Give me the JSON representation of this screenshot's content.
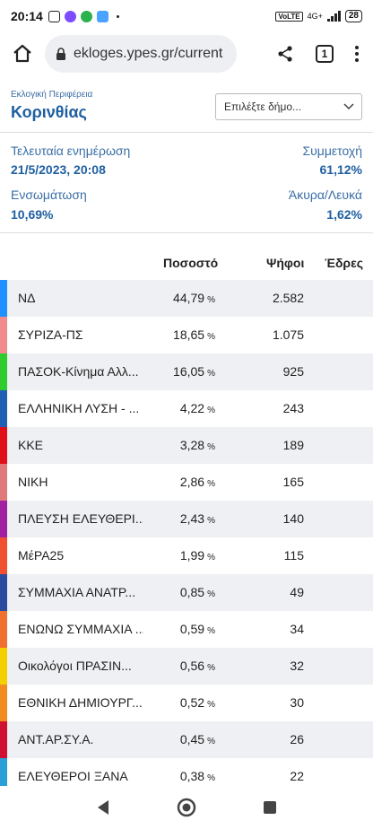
{
  "status_bar": {
    "time": "20:14",
    "network": "4G+",
    "battery": "28"
  },
  "browser": {
    "url": "ekloges.ypes.gr/current",
    "tab_count": "1"
  },
  "region": {
    "label": "Εκλογική Περιφέρεια",
    "name": "Κορινθίας",
    "select_placeholder": "Επιλέξτε δήμο..."
  },
  "stats": {
    "last_update_label": "Τελευταία ενημέρωση",
    "last_update_value": "21/5/2023, 20:08",
    "turnout_label": "Συμμετοχή",
    "turnout_value": "61,12%",
    "integration_label": "Ενσωμάτωση",
    "integration_value": "10,69%",
    "invalid_label": "Άκυρα/Λευκά",
    "invalid_value": "1,62%"
  },
  "table": {
    "headers": {
      "percent": "Ποσοστό",
      "votes": "Ψήφοι",
      "seats": "Έδρες"
    },
    "pct_suffix": "%",
    "rows": [
      {
        "party": "ΝΔ",
        "percent": "44,79",
        "votes": "2.582",
        "color": "#1e90ff"
      },
      {
        "party": "ΣΥΡΙΖΑ-ΠΣ",
        "percent": "18,65",
        "votes": "1.075",
        "color": "#f28b8b"
      },
      {
        "party": "ΠΑΣΟΚ-Κίνημα Αλλ...",
        "percent": "16,05",
        "votes": "925",
        "color": "#2ecc2e"
      },
      {
        "party": "ΕΛΛΗΝΙΚΗ ΛΥΣΗ - ...",
        "percent": "4,22",
        "votes": "243",
        "color": "#1f5fb4"
      },
      {
        "party": "ΚΚΕ",
        "percent": "3,28",
        "votes": "189",
        "color": "#e0101a"
      },
      {
        "party": "ΝΙΚΗ",
        "percent": "2,86",
        "votes": "165",
        "color": "#e07a7a"
      },
      {
        "party": "ΠΛΕΥΣΗ ΕΛΕΥΘΕΡΙ...",
        "percent": "2,43",
        "votes": "140",
        "color": "#a020a0"
      },
      {
        "party": "ΜέΡΑ25",
        "percent": "1,99",
        "votes": "115",
        "color": "#f05030"
      },
      {
        "party": "ΣΥΜΜΑΧΙΑ ΑΝΑΤΡ...",
        "percent": "0,85",
        "votes": "49",
        "color": "#2a4aa0"
      },
      {
        "party": "ΕΝΩΝΩ ΣΥΜΜΑΧΙΑ ...",
        "percent": "0,59",
        "votes": "34",
        "color": "#f07030"
      },
      {
        "party": "Οικολόγοι ΠΡΑΣΙΝ...",
        "percent": "0,56",
        "votes": "32",
        "color": "#f5d000"
      },
      {
        "party": "ΕΘΝΙΚΗ ΔΗΜΙΟΥΡΓ...",
        "percent": "0,52",
        "votes": "30",
        "color": "#f08c20"
      },
      {
        "party": "ΑΝΤ.ΑΡ.ΣΥ.Α.",
        "percent": "0,45",
        "votes": "26",
        "color": "#d01030"
      },
      {
        "party": "ΕΛΕΥΘΕΡΟΙ ΞΑΝΑ",
        "percent": "0,38",
        "votes": "22",
        "color": "#2a9fd6"
      }
    ]
  }
}
